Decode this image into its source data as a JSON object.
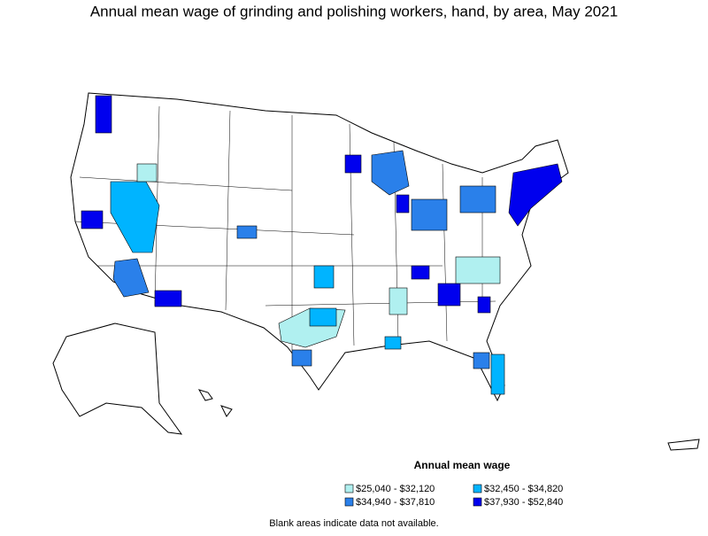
{
  "title": "Annual mean wage of grinding and polishing workers, hand, by area, May 2021",
  "legend": {
    "title": "Annual mean wage",
    "items": [
      {
        "label": "$25,040 - $32,120",
        "color": "#b0f0f0"
      },
      {
        "label": "$32,450 - $34,820",
        "color": "#00b4ff"
      },
      {
        "label": "$34,940 - $37,810",
        "color": "#2a80ea"
      },
      {
        "label": "$37,930 - $52,840",
        "color": "#0000ee"
      }
    ]
  },
  "note": "Blank areas indicate data not available."
}
